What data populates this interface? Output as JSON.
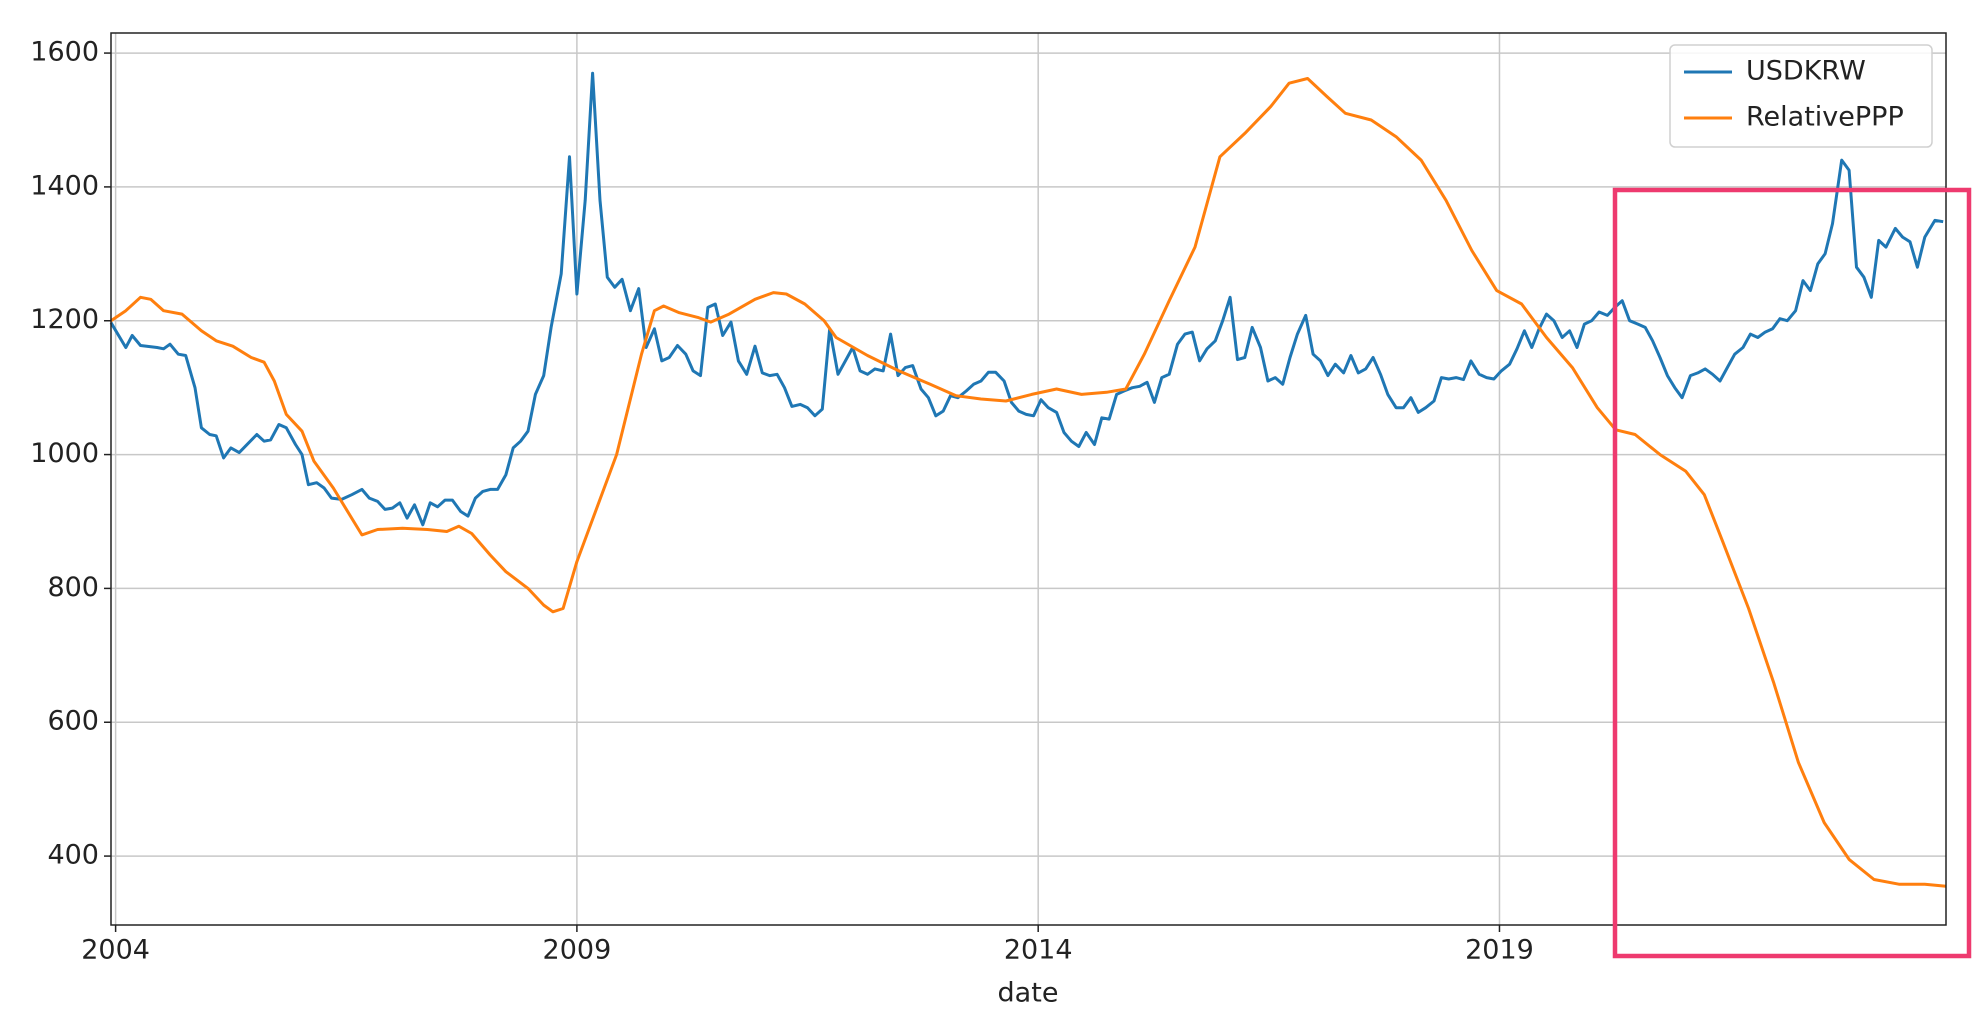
{
  "chart_data": {
    "type": "line",
    "xlabel": "date",
    "xlim": [
      2003.95,
      2023.84
    ],
    "xticks": [
      2004,
      2009,
      2014,
      2019
    ],
    "ylim": [
      297,
      1630
    ],
    "yticks": [
      400,
      600,
      800,
      1000,
      1200,
      1400,
      1600
    ],
    "grid": true,
    "legend": "upper right",
    "series": [
      {
        "name": "USDKRW",
        "color": "#1f77b4",
        "x": [
          2003.95,
          2004.11,
          2004.18,
          2004.27,
          2004.45,
          2004.52,
          2004.59,
          2004.68,
          2004.76,
          2004.86,
          2004.93,
          2005.02,
          2005.09,
          2005.17,
          2005.25,
          2005.34,
          2005.53,
          2005.61,
          2005.68,
          2005.77,
          2005.85,
          2005.95,
          2006.02,
          2006.09,
          2006.18,
          2006.26,
          2006.34,
          2006.45,
          2006.56,
          2006.67,
          2006.75,
          2006.84,
          2006.92,
          2007.0,
          2007.08,
          2007.16,
          2007.24,
          2007.33,
          2007.41,
          2007.49,
          2007.57,
          2007.65,
          2007.74,
          2007.82,
          2007.9,
          2007.98,
          2008.06,
          2008.14,
          2008.23,
          2008.31,
          2008.39,
          2008.47,
          2008.55,
          2008.64,
          2008.72,
          2008.83,
          2008.92,
          2009.0,
          2009.09,
          2009.17,
          2009.25,
          2009.33,
          2009.41,
          2009.49,
          2009.58,
          2009.67,
          2009.75,
          2009.84,
          2009.92,
          2010.0,
          2010.09,
          2010.18,
          2010.26,
          2010.34,
          2010.42,
          2010.5,
          2010.58,
          2010.67,
          2010.75,
          2010.84,
          2010.93,
          2011.01,
          2011.09,
          2011.17,
          2011.25,
          2011.33,
          2011.42,
          2011.5,
          2011.58,
          2011.66,
          2011.74,
          2011.83,
          2011.91,
          2011.99,
          2012.07,
          2012.15,
          2012.23,
          2012.32,
          2012.4,
          2012.48,
          2012.56,
          2012.64,
          2012.73,
          2012.81,
          2012.89,
          2012.97,
          2013.05,
          2013.13,
          2013.22,
          2013.3,
          2013.38,
          2013.46,
          2013.54,
          2013.63,
          2013.71,
          2013.79,
          2013.87,
          2013.95,
          2014.03,
          2014.11,
          2014.2,
          2014.28,
          2014.36,
          2014.44,
          2014.52,
          2014.61,
          2014.69,
          2014.77,
          2014.85,
          2014.93,
          2015.02,
          2015.1,
          2015.18,
          2015.26,
          2015.34,
          2015.42,
          2015.51,
          2015.59,
          2015.67,
          2015.75,
          2015.83,
          2015.92,
          2016.0,
          2016.08,
          2016.16,
          2016.24,
          2016.32,
          2016.41,
          2016.49,
          2016.57,
          2016.65,
          2016.73,
          2016.81,
          2016.9,
          2016.98,
          2017.06,
          2017.14,
          2017.22,
          2017.31,
          2017.39,
          2017.47,
          2017.55,
          2017.63,
          2017.71,
          2017.79,
          2017.88,
          2017.96,
          2018.04,
          2018.12,
          2018.2,
          2018.29,
          2018.37,
          2018.45,
          2018.53,
          2018.61,
          2018.69,
          2018.78,
          2018.86,
          2018.94,
          2019.02,
          2019.11,
          2019.19,
          2019.27,
          2019.35,
          2019.43,
          2019.51,
          2019.59,
          2019.68,
          2019.76,
          2019.84,
          2019.92,
          2020.0,
          2020.08,
          2020.17,
          2020.25,
          2020.33,
          2020.41,
          2020.5,
          2020.58,
          2020.66,
          2020.74,
          2020.82,
          2020.9,
          2020.98,
          2021.07,
          2021.15,
          2021.23,
          2021.31,
          2021.39,
          2021.47,
          2021.55,
          2021.64,
          2021.72,
          2021.8,
          2021.88,
          2021.96,
          2022.04,
          2022.12,
          2022.21,
          2022.29,
          2022.37,
          2022.45,
          2022.53,
          2022.61,
          2022.71,
          2022.79,
          2022.87,
          2022.95,
          2023.03,
          2023.11,
          2023.19,
          2023.29,
          2023.37,
          2023.45,
          2023.53,
          2023.61,
          2023.72,
          2023.81
        ],
        "values": [
          1197,
          1160,
          1178,
          1163,
          1160,
          1158,
          1165,
          1150,
          1148,
          1100,
          1040,
          1030,
          1028,
          995,
          1010,
          1003,
          1030,
          1020,
          1022,
          1045,
          1040,
          1015,
          1000,
          955,
          958,
          950,
          935,
          933,
          940,
          948,
          935,
          930,
          918,
          920,
          928,
          905,
          925,
          895,
          928,
          922,
          932,
          932,
          915,
          908,
          935,
          945,
          948,
          948,
          970,
          1010,
          1020,
          1035,
          1090,
          1118,
          1190,
          1270,
          1445,
          1240,
          1380,
          1570,
          1380,
          1265,
          1250,
          1262,
          1215,
          1248,
          1160,
          1188,
          1140,
          1145,
          1163,
          1150,
          1125,
          1118,
          1220,
          1225,
          1178,
          1198,
          1140,
          1120,
          1162,
          1122,
          1118,
          1120,
          1100,
          1072,
          1075,
          1070,
          1058,
          1068,
          1188,
          1120,
          1140,
          1160,
          1125,
          1120,
          1128,
          1125,
          1180,
          1118,
          1130,
          1133,
          1098,
          1085,
          1058,
          1065,
          1088,
          1085,
          1095,
          1105,
          1110,
          1123,
          1123,
          1110,
          1078,
          1065,
          1060,
          1058,
          1082,
          1070,
          1063,
          1033,
          1020,
          1012,
          1033,
          1015,
          1055,
          1053,
          1090,
          1095,
          1100,
          1102,
          1108,
          1078,
          1115,
          1120,
          1165,
          1180,
          1183,
          1140,
          1158,
          1170,
          1200,
          1235,
          1142,
          1145,
          1190,
          1160,
          1110,
          1115,
          1105,
          1145,
          1180,
          1208,
          1150,
          1140,
          1118,
          1135,
          1122,
          1148,
          1122,
          1128,
          1145,
          1120,
          1090,
          1070,
          1070,
          1085,
          1063,
          1070,
          1080,
          1115,
          1113,
          1115,
          1112,
          1140,
          1120,
          1115,
          1113,
          1125,
          1135,
          1158,
          1185,
          1160,
          1188,
          1210,
          1200,
          1175,
          1185,
          1160,
          1195,
          1200,
          1213,
          1208,
          1220,
          1230,
          1200,
          1195,
          1190,
          1170,
          1145,
          1118,
          1100,
          1085,
          1118,
          1122,
          1128,
          1120,
          1110,
          1130,
          1150,
          1160,
          1180,
          1175,
          1183,
          1188,
          1203,
          1200,
          1215,
          1260,
          1245,
          1285,
          1300,
          1345,
          1440,
          1425,
          1280,
          1265,
          1235,
          1320,
          1310,
          1338,
          1325,
          1318,
          1280,
          1325,
          1350,
          1348
        ]
      },
      {
        "name": "RelativePPP",
        "color": "#ff7f0e",
        "x": [
          2003.95,
          2004.11,
          2004.27,
          2004.38,
          2004.52,
          2004.72,
          2004.93,
          2005.09,
          2005.27,
          2005.47,
          2005.61,
          2005.72,
          2005.85,
          2006.02,
          2006.15,
          2006.36,
          2006.67,
          2006.84,
          2007.11,
          2007.38,
          2007.59,
          2007.72,
          2007.86,
          2008.06,
          2008.23,
          2008.47,
          2008.64,
          2008.74,
          2008.85,
          2009.0,
          2009.43,
          2009.7,
          2009.84,
          2009.94,
          2010.11,
          2010.31,
          2010.45,
          2010.65,
          2010.93,
          2011.13,
          2011.27,
          2011.47,
          2011.68,
          2011.81,
          2012.15,
          2012.49,
          2012.83,
          2013.11,
          2013.38,
          2013.65,
          2013.93,
          2014.2,
          2014.47,
          2014.74,
          2014.95,
          2015.15,
          2015.42,
          2015.7,
          2015.97,
          2016.24,
          2016.52,
          2016.72,
          2016.92,
          2017.13,
          2017.33,
          2017.61,
          2017.88,
          2018.15,
          2018.42,
          2018.7,
          2018.97,
          2019.24,
          2019.51,
          2019.79,
          2020.06,
          2020.26,
          2020.47,
          2020.74,
          2021.02,
          2021.22,
          2021.42,
          2021.7,
          2021.97,
          2022.24,
          2022.52,
          2022.79,
          2023.06,
          2023.33,
          2023.61,
          2023.84
        ],
        "values": [
          1200,
          1215,
          1235,
          1232,
          1215,
          1210,
          1185,
          1170,
          1162,
          1145,
          1138,
          1110,
          1060,
          1035,
          990,
          950,
          880,
          888,
          890,
          888,
          885,
          893,
          882,
          850,
          825,
          800,
          775,
          765,
          770,
          840,
          1000,
          1150,
          1215,
          1222,
          1212,
          1205,
          1198,
          1210,
          1232,
          1242,
          1240,
          1225,
          1200,
          1175,
          1148,
          1125,
          1105,
          1088,
          1083,
          1080,
          1090,
          1098,
          1090,
          1093,
          1098,
          1150,
          1230,
          1310,
          1445,
          1480,
          1520,
          1555,
          1562,
          1535,
          1510,
          1500,
          1475,
          1440,
          1380,
          1305,
          1245,
          1225,
          1175,
          1130,
          1070,
          1037,
          1030,
          1000,
          975,
          940,
          870,
          770,
          660,
          540,
          450,
          395,
          365,
          358,
          358,
          355
        ]
      }
    ]
  }
}
